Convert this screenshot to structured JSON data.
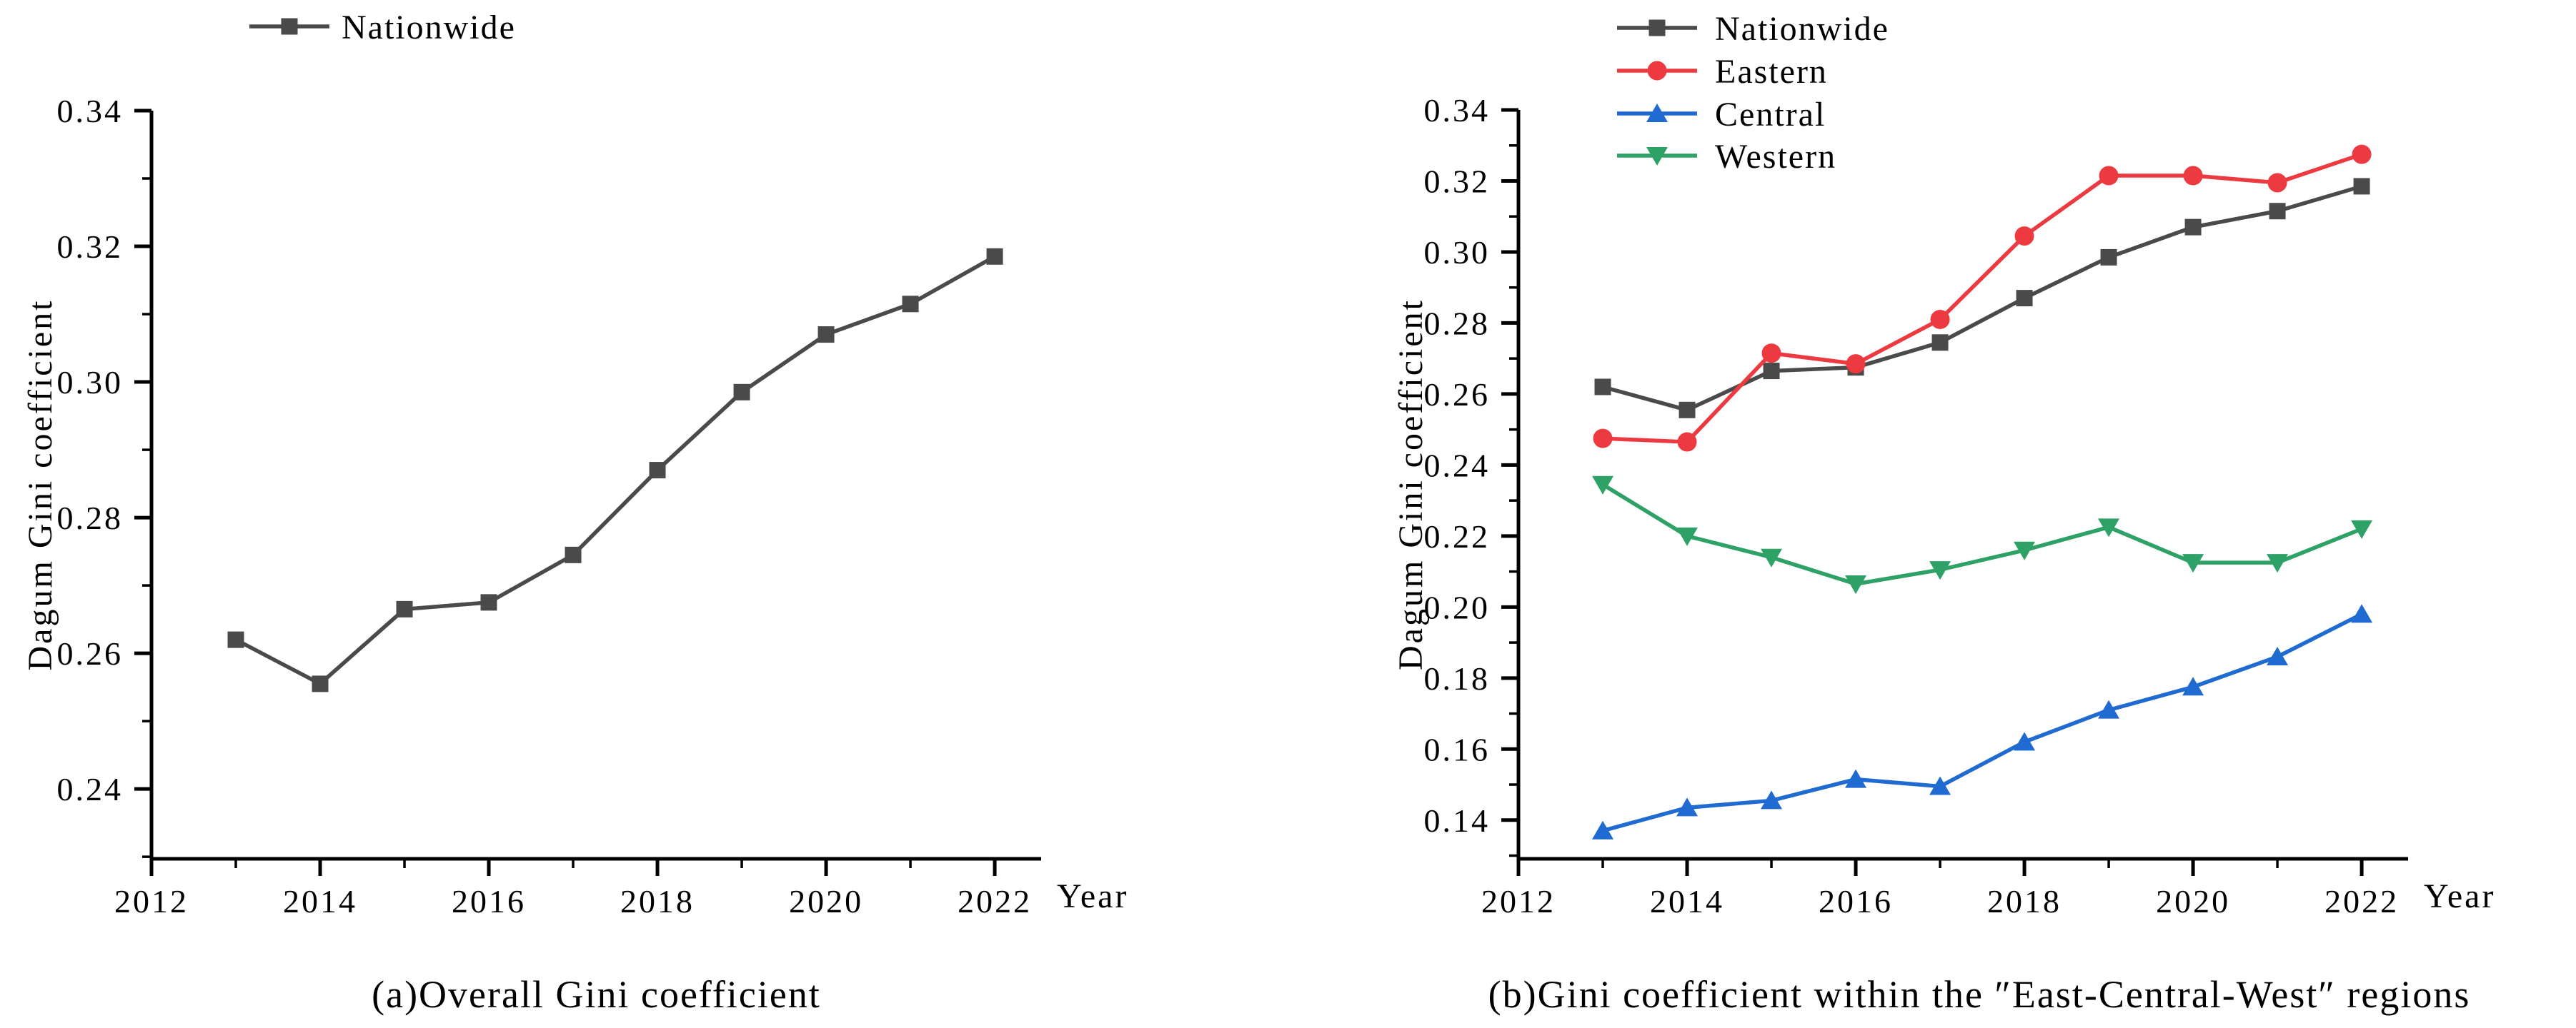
{
  "figure": {
    "background_color": "#ffffff",
    "text_color": "#000000"
  },
  "captions": {
    "left": "(a)Overall Gini coefficient",
    "right": "(b)Gini coefficient within the ″East-Central-West″ regions"
  },
  "chart_data": [
    {
      "type": "line",
      "title": "",
      "xlabel": "Year",
      "ylabel": "Dagum Gini coefficient",
      "caption": "(a)Overall Gini coefficient",
      "x": [
        2013,
        2014,
        2015,
        2016,
        2017,
        2018,
        2019,
        2020,
        2021,
        2022
      ],
      "xlim": [
        2012,
        2022.55
      ],
      "ylim": [
        0.2297,
        0.34
      ],
      "xticks_major": [
        2012,
        2014,
        2016,
        2018,
        2020,
        2022
      ],
      "xticks_minor": [
        2013,
        2015,
        2017,
        2019,
        2021
      ],
      "yticks": [
        0.24,
        0.26,
        0.28,
        0.3,
        0.32,
        0.34
      ],
      "grid": false,
      "legend_position": "top-left-above-plot",
      "series": [
        {
          "name": "Nationwide",
          "color": "#4a4a4a",
          "marker": "square",
          "values": [
            0.262,
            0.2555,
            0.2665,
            0.2675,
            0.2745,
            0.287,
            0.2985,
            0.307,
            0.3115,
            0.3185
          ]
        }
      ]
    },
    {
      "type": "line",
      "title": "",
      "xlabel": "Year",
      "ylabel": "Dagum Gini coefficient",
      "caption": "(b)Gini coefficient within the ″East-Central-West″ regions",
      "x": [
        2013,
        2014,
        2015,
        2016,
        2017,
        2018,
        2019,
        2020,
        2021,
        2022
      ],
      "xlim": [
        2012,
        2022.55
      ],
      "ylim": [
        0.1291,
        0.34
      ],
      "xticks_major": [
        2012,
        2014,
        2016,
        2018,
        2020,
        2022
      ],
      "xticks_minor": [
        2013,
        2015,
        2017,
        2019,
        2021
      ],
      "yticks": [
        0.14,
        0.16,
        0.18,
        0.2,
        0.22,
        0.24,
        0.26,
        0.28,
        0.3,
        0.32,
        0.34
      ],
      "grid": false,
      "legend_position": "top-left-above-plot",
      "series": [
        {
          "name": "Nationwide",
          "color": "#4a4a4a",
          "marker": "square",
          "values": [
            0.262,
            0.2555,
            0.2665,
            0.2675,
            0.2745,
            0.287,
            0.2985,
            0.307,
            0.3115,
            0.3185
          ]
        },
        {
          "name": "Eastern",
          "color": "#ed3a40",
          "marker": "circle",
          "values": [
            0.2475,
            0.2465,
            0.2715,
            0.2685,
            0.281,
            0.3045,
            0.3215,
            0.3215,
            0.3195,
            0.3275
          ]
        },
        {
          "name": "Central",
          "color": "#1f6bd2",
          "marker": "triangle-up",
          "values": [
            0.137,
            0.1435,
            0.1455,
            0.1515,
            0.1495,
            0.162,
            0.171,
            0.1775,
            0.186,
            0.198
          ]
        },
        {
          "name": "Western",
          "color": "#2ea266",
          "marker": "triangle-down",
          "values": [
            0.2345,
            0.22,
            0.214,
            0.2065,
            0.2105,
            0.216,
            0.2225,
            0.2125,
            0.2125,
            0.222
          ]
        }
      ]
    }
  ]
}
